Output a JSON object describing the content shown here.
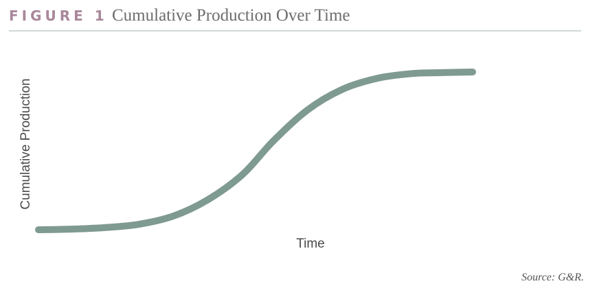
{
  "chart_data": {
    "type": "line",
    "figure_label": "FIGURE 1",
    "title": "Cumulative Production Over Time",
    "x_label": "Time",
    "y_label": "Cumulative Production",
    "source": "Source: G&R.",
    "x": [
      0,
      7.5,
      15,
      23,
      31,
      39,
      47,
      54,
      62,
      70,
      78,
      86,
      93,
      100
    ],
    "series": [
      {
        "name": "Cumulative Production",
        "color": "#7f9a91",
        "values": [
          0,
          0.4,
          1.3,
          3.4,
          8.6,
          19,
          35,
          56,
          76,
          89,
          96,
          99,
          99.6,
          100
        ]
      }
    ],
    "xlim": [
      0,
      100
    ],
    "ylim": [
      0,
      100
    ]
  }
}
